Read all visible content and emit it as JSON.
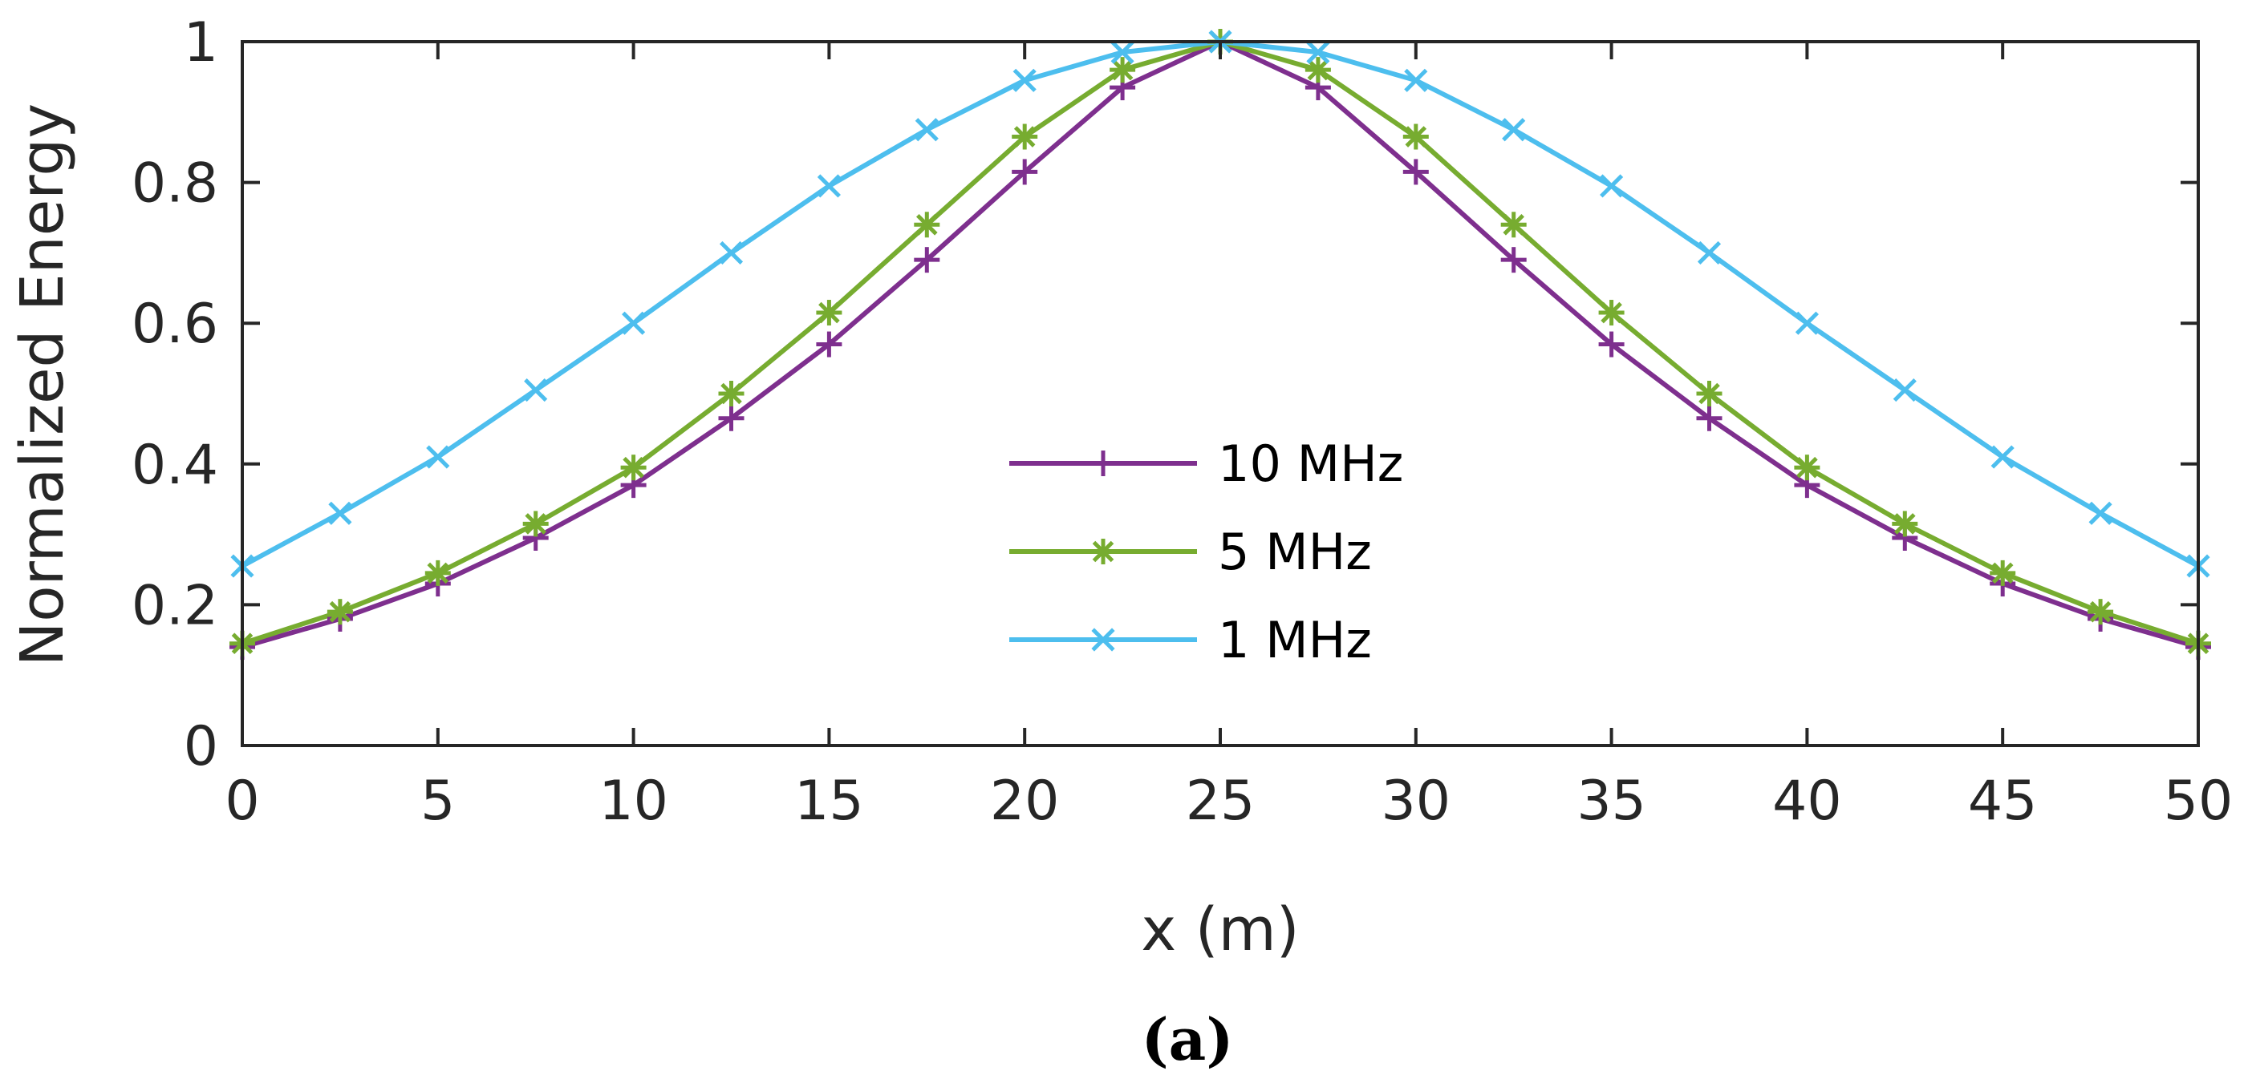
{
  "chart_data": {
    "type": "line",
    "title": "",
    "xlabel": "x (m)",
    "ylabel": "Normalized Energy",
    "caption": "(a)",
    "xlim": [
      0,
      50
    ],
    "ylim": [
      0,
      1
    ],
    "xticks": [
      0,
      5,
      10,
      15,
      20,
      25,
      30,
      35,
      40,
      45,
      50
    ],
    "yticks": [
      0,
      0.2,
      0.4,
      0.6,
      0.8,
      1
    ],
    "ytick_labels": [
      "0",
      "0.2",
      "0.4",
      "0.6",
      "0.8",
      "1"
    ],
    "grid": false,
    "legend_position": "center",
    "x": [
      0,
      2.5,
      5,
      7.5,
      10,
      12.5,
      15,
      17.5,
      20,
      22.5,
      25,
      27.5,
      30,
      32.5,
      35,
      37.5,
      40,
      42.5,
      45,
      47.5,
      50
    ],
    "series": [
      {
        "name": "10 MHz",
        "color": "#7E2F8E",
        "marker": "plus",
        "values": [
          0.14,
          0.18,
          0.23,
          0.295,
          0.37,
          0.465,
          0.57,
          0.69,
          0.815,
          0.935,
          1.0,
          0.935,
          0.815,
          0.69,
          0.57,
          0.465,
          0.37,
          0.295,
          0.23,
          0.18,
          0.14
        ]
      },
      {
        "name": "5 MHz",
        "color": "#77AC30",
        "marker": "asterisk",
        "values": [
          0.145,
          0.19,
          0.245,
          0.315,
          0.395,
          0.5,
          0.615,
          0.74,
          0.865,
          0.96,
          1.0,
          0.96,
          0.865,
          0.74,
          0.615,
          0.5,
          0.395,
          0.315,
          0.245,
          0.19,
          0.145
        ]
      },
      {
        "name": "1 MHz",
        "color": "#4DBEEE",
        "marker": "x",
        "values": [
          0.255,
          0.33,
          0.41,
          0.505,
          0.6,
          0.7,
          0.795,
          0.875,
          0.945,
          0.985,
          1.0,
          0.985,
          0.945,
          0.875,
          0.795,
          0.7,
          0.6,
          0.505,
          0.41,
          0.33,
          0.255
        ]
      }
    ]
  }
}
